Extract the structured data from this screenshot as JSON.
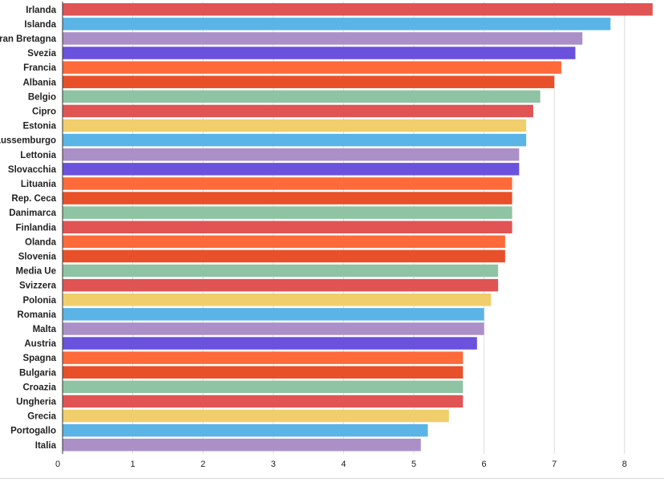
{
  "chart_data": {
    "type": "bar",
    "orientation": "horizontal",
    "categories": [
      "Irlanda",
      "Islanda",
      "Gran Bretagna",
      "Svezia",
      "Francia",
      "Albania",
      "Belgio",
      "Cipro",
      "Estonia",
      "Lussemburgo",
      "Lettonia",
      "Slovacchia",
      "Lituania",
      "Rep. Ceca",
      "Danimarca",
      "Finlandia",
      "Olanda",
      "Slovenia",
      "Media Ue",
      "Svizzera",
      "Polonia",
      "Romania",
      "Malta",
      "Austria",
      "Spagna",
      "Bulgaria",
      "Croazia",
      "Ungheria",
      "Grecia",
      "Portogallo",
      "Italia"
    ],
    "values": [
      8.4,
      7.8,
      7.4,
      7.3,
      7.1,
      7.0,
      6.8,
      6.7,
      6.6,
      6.6,
      6.5,
      6.5,
      6.4,
      6.4,
      6.4,
      6.4,
      6.3,
      6.3,
      6.2,
      6.2,
      6.1,
      6.0,
      6.0,
      5.9,
      5.7,
      5.7,
      5.7,
      5.7,
      5.5,
      5.2,
      5.1
    ],
    "colors": [
      "#e05454",
      "#5ab4e6",
      "#ab90c8",
      "#6a52dc",
      "#ff6a3a",
      "#e8502a",
      "#8ec4a4",
      "#e05454",
      "#f0ce6c",
      "#5ab4e6",
      "#ab90c8",
      "#6a52dc",
      "#ff6a3a",
      "#e8502a",
      "#8ec4a4",
      "#e05454",
      "#ff6a3a",
      "#e8502a",
      "#8ec4a4",
      "#e05454",
      "#f0ce6c",
      "#5ab4e6",
      "#ab90c8",
      "#6a52dc",
      "#ff6a3a",
      "#e8502a",
      "#8ec4a4",
      "#e05454",
      "#f0ce6c",
      "#5ab4e6",
      "#ab90c8"
    ],
    "x_ticks": [
      0,
      1,
      2,
      3,
      4,
      5,
      6,
      7,
      8
    ],
    "xlim": [
      0,
      8.5
    ],
    "grid": true,
    "title": "",
    "xlabel": "",
    "ylabel": ""
  }
}
